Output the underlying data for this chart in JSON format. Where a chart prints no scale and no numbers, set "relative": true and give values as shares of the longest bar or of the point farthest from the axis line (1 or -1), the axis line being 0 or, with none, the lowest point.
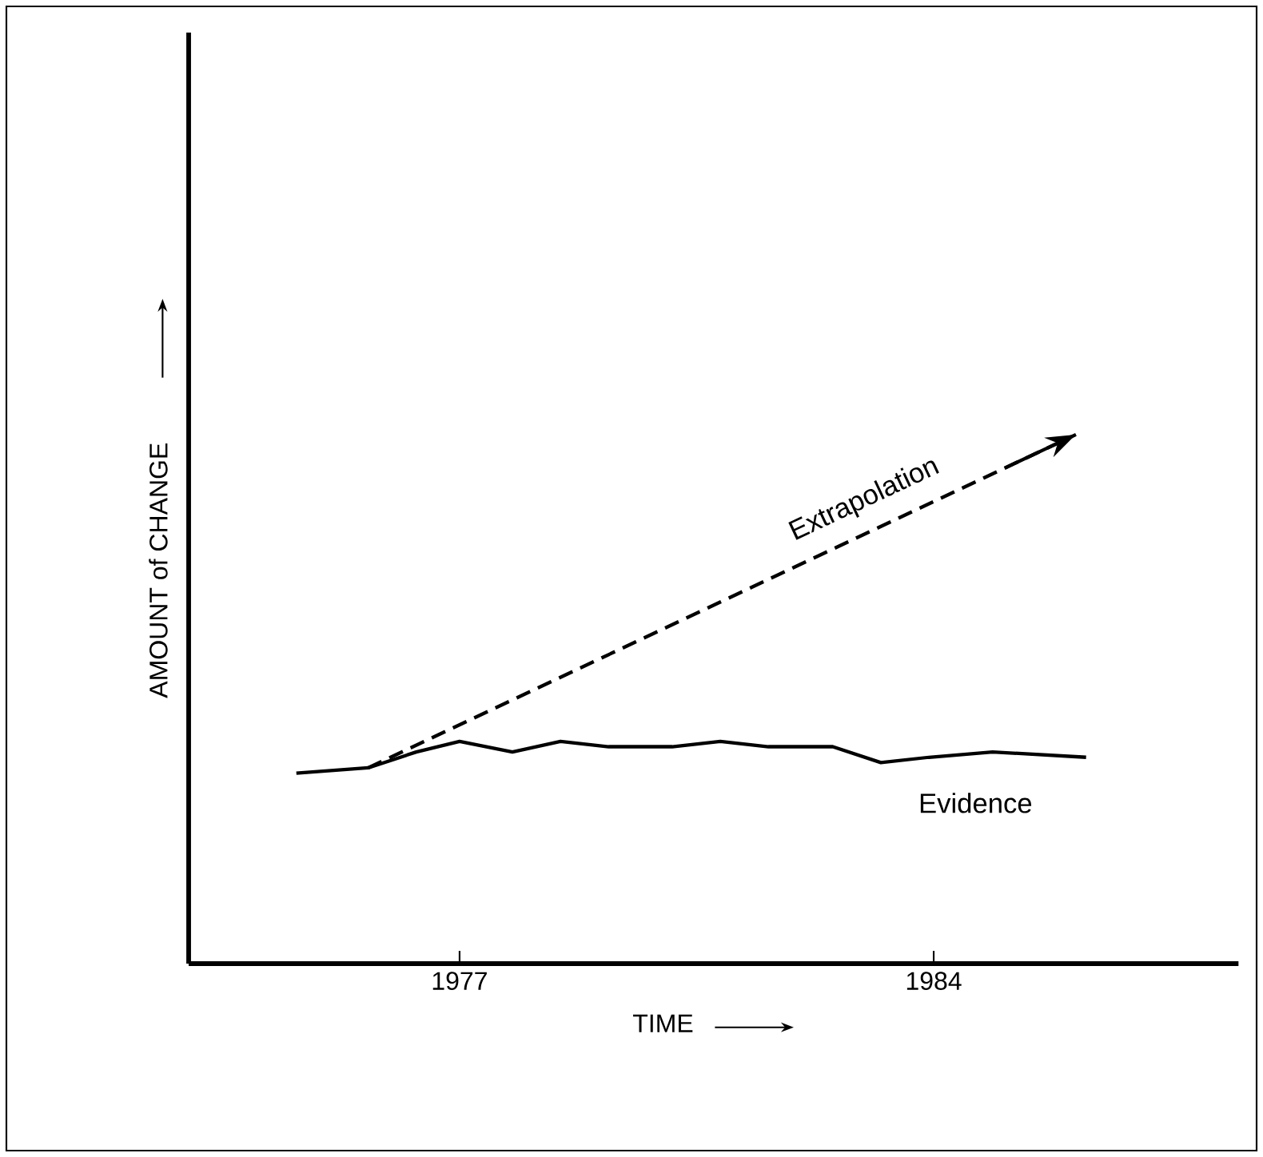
{
  "chart_data": {
    "type": "line",
    "relative": true,
    "xlabel": "TIME",
    "ylabel": "AMOUNT of CHANGE",
    "xlim": [
      1973,
      1988.5
    ],
    "xticks": [
      1977,
      1984
    ],
    "grid": false,
    "marker": "none",
    "series": [
      {
        "name": "Extrapolation",
        "color": "#000000",
        "line_style": "dashed",
        "x": [
          1975.65,
          1986.1
        ],
        "values": [
          0.37,
          1.0
        ]
      },
      {
        "name": "Evidence",
        "color": "#000000",
        "line_style": "solid",
        "x": [
          1974.59,
          1975.65,
          1976.36,
          1977,
          1977.78,
          1978.49,
          1979.2,
          1980.14,
          1980.85,
          1981.56,
          1982.51,
          1983.22,
          1983.93,
          1984.87,
          1986.25
        ],
        "values": [
          0.36,
          0.37,
          0.4,
          0.42,
          0.4,
          0.42,
          0.41,
          0.41,
          0.42,
          0.41,
          0.41,
          0.38,
          0.39,
          0.4,
          0.39
        ]
      }
    ]
  }
}
